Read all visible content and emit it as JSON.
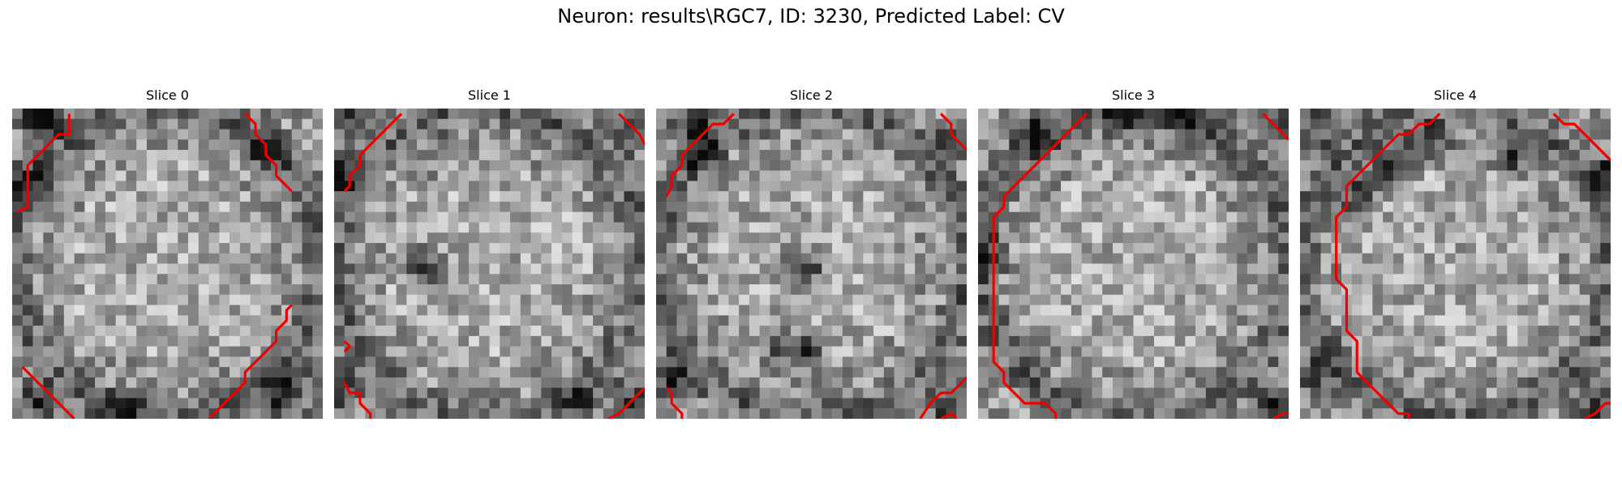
{
  "figure": {
    "title": "Neuron: results\\RGC7, ID: 3230, Predicted Label: CV",
    "panels": [
      {
        "title": "Slice 0",
        "contour": [
          [
            [
              5,
              0
            ],
            [
              5,
              2
            ],
            [
              4,
              2
            ],
            [
              3,
              3
            ],
            [
              2,
              4
            ],
            [
              1,
              5
            ],
            [
              1,
              6
            ],
            [
              1,
              7
            ],
            [
              1,
              8
            ],
            [
              1,
              9
            ],
            [
              0,
              9.5
            ]
          ],
          [
            [
              22,
              0
            ],
            [
              23,
              1
            ],
            [
              23,
              2
            ],
            [
              24,
              3
            ],
            [
              24,
              4
            ],
            [
              25,
              5
            ],
            [
              25,
              6
            ],
            [
              26,
              7
            ],
            [
              26.5,
              7.5
            ]
          ],
          [
            [
              0.5,
              24.5
            ],
            [
              1,
              25
            ],
            [
              2,
              26
            ],
            [
              3,
              27
            ],
            [
              4,
              28
            ],
            [
              5,
              29
            ],
            [
              5.5,
              29.5
            ]
          ],
          [
            [
              26.5,
              18.5
            ],
            [
              26,
              19
            ],
            [
              26,
              20
            ],
            [
              25,
              21
            ],
            [
              25,
              22
            ],
            [
              24,
              23
            ],
            [
              23,
              24
            ],
            [
              22,
              25
            ],
            [
              22,
              26
            ],
            [
              21,
              27
            ],
            [
              20,
              28
            ],
            [
              19,
              29
            ],
            [
              18.5,
              29.5
            ]
          ]
        ],
        "dark": [
          [
            2,
            1,
            1.5
          ],
          [
            1,
            7,
            2
          ],
          [
            3,
            0,
            2
          ],
          [
            24,
            4,
            1.5
          ],
          [
            2,
            28,
            2
          ],
          [
            26,
            27,
            2.5
          ],
          [
            10,
            29,
            2
          ]
        ]
      },
      {
        "title": "Slice 1",
        "contour": [
          [
            [
              6,
              0
            ],
            [
              5,
              1
            ],
            [
              4,
              2
            ],
            [
              3,
              3
            ],
            [
              2,
              4
            ],
            [
              2,
              5
            ],
            [
              1,
              6
            ],
            [
              1,
              7
            ],
            [
              0.5,
              7.5
            ]
          ],
          [
            [
              27,
              0
            ],
            [
              28,
              1
            ],
            [
              29,
              2
            ],
            [
              29.5,
              3
            ]
          ],
          [
            [
              0.5,
              22
            ],
            [
              1,
              22.5
            ],
            [
              0.5,
              23
            ]
          ],
          [
            [
              0.5,
              26
            ],
            [
              1,
              27
            ],
            [
              2,
              27
            ],
            [
              2,
              28
            ],
            [
              3,
              29
            ],
            [
              3,
              29.5
            ]
          ],
          [
            [
              26,
              29.5
            ],
            [
              27,
              29
            ],
            [
              28,
              28
            ],
            [
              29,
              27
            ],
            [
              29.5,
              26.5
            ]
          ]
        ],
        "dark": [
          [
            1,
            0,
            1.5
          ],
          [
            0,
            6,
            1.5
          ],
          [
            28,
            2,
            1.5
          ],
          [
            0,
            27,
            2
          ],
          [
            28,
            28,
            2
          ],
          [
            23,
            28,
            1.5
          ],
          [
            8,
            15,
            2
          ]
        ]
      },
      {
        "title": "Slice 2",
        "contour": [
          [
            [
              7,
              0
            ],
            [
              6,
              1
            ],
            [
              5,
              1
            ],
            [
              4,
              2
            ],
            [
              3,
              3
            ],
            [
              2,
              4
            ],
            [
              2,
              5
            ],
            [
              1,
              6
            ],
            [
              1,
              7
            ],
            [
              0.5,
              8
            ]
          ],
          [
            [
              27,
              0
            ],
            [
              28,
              1
            ],
            [
              28,
              2
            ],
            [
              29,
              3
            ],
            [
              29.5,
              3.5
            ]
          ],
          [
            [
              0.5,
              26.5
            ],
            [
              1,
              27
            ],
            [
              1,
              28
            ],
            [
              2,
              29
            ],
            [
              2,
              29.5
            ]
          ],
          [
            [
              25,
              29.5
            ],
            [
              26,
              28
            ],
            [
              27,
              27
            ],
            [
              28,
              27
            ],
            [
              29,
              26
            ],
            [
              29.5,
              25.5
            ]
          ],
          [
            [
              27,
              29.5
            ],
            [
              28,
              29
            ],
            [
              28.5,
              29.5
            ]
          ]
        ],
        "dark": [
          [
            3,
            1,
            2
          ],
          [
            4,
            4,
            1.5
          ],
          [
            28,
            3,
            1.5
          ],
          [
            1,
            26,
            2.5
          ],
          [
            28,
            28,
            2.5
          ],
          [
            14,
            15,
            2
          ],
          [
            11,
            22,
            1.5
          ],
          [
            14,
            23,
            1.5
          ]
        ]
      },
      {
        "title": "Slice 3",
        "contour": [
          [
            [
              10,
              0
            ],
            [
              9,
              1
            ],
            [
              8,
              2
            ],
            [
              7,
              3
            ],
            [
              6,
              4
            ],
            [
              5,
              5
            ],
            [
              4,
              6
            ],
            [
              3,
              7
            ],
            [
              2,
              8
            ],
            [
              2,
              9
            ],
            [
              1,
              10
            ],
            [
              1,
              11
            ],
            [
              1,
              12
            ],
            [
              1,
              13
            ],
            [
              1,
              14
            ],
            [
              1,
              15
            ],
            [
              1,
              16
            ],
            [
              1,
              17
            ],
            [
              1,
              18
            ],
            [
              1,
              19
            ],
            [
              1,
              20
            ],
            [
              1,
              21
            ],
            [
              1,
              22
            ],
            [
              1,
              23
            ],
            [
              1,
              24
            ],
            [
              2,
              25
            ],
            [
              2,
              26
            ],
            [
              3,
              27
            ],
            [
              4,
              28
            ],
            [
              5,
              28
            ],
            [
              6,
              28
            ],
            [
              7,
              29
            ],
            [
              7,
              29.5
            ]
          ],
          [
            [
              27,
              0
            ],
            [
              28,
              1
            ],
            [
              29,
              2
            ],
            [
              29.5,
              2.5
            ]
          ],
          [
            [
              28,
              29.5
            ],
            [
              29,
              29
            ],
            [
              29.5,
              29
            ]
          ]
        ],
        "dark": [
          [
            14,
            0,
            3
          ],
          [
            5,
            2,
            2
          ],
          [
            28,
            1,
            1.5
          ],
          [
            0,
            14,
            2
          ],
          [
            28,
            28,
            2
          ],
          [
            20,
            0,
            2.5
          ]
        ]
      },
      {
        "title": "Slice 4",
        "contour": [
          [
            [
              13,
              0
            ],
            [
              12,
              1
            ],
            [
              11,
              1
            ],
            [
              10,
              2
            ],
            [
              9,
              2
            ],
            [
              8,
              3
            ],
            [
              7,
              4
            ],
            [
              6,
              5
            ],
            [
              5,
              6
            ],
            [
              4,
              7
            ],
            [
              4,
              8
            ],
            [
              4,
              9
            ],
            [
              3,
              10
            ],
            [
              3,
              11
            ],
            [
              3,
              12
            ],
            [
              3,
              13
            ],
            [
              3,
              14
            ],
            [
              3,
              15
            ],
            [
              3,
              16
            ],
            [
              4,
              17
            ],
            [
              4,
              18
            ],
            [
              4,
              19
            ],
            [
              4,
              20
            ],
            [
              4,
              21
            ],
            [
              5,
              22
            ],
            [
              5,
              23
            ],
            [
              5,
              24
            ],
            [
              5,
              25
            ],
            [
              6,
              26
            ],
            [
              7,
              27
            ],
            [
              8,
              28
            ],
            [
              9,
              29
            ],
            [
              10,
              29
            ],
            [
              10,
              29.5
            ]
          ],
          [
            [
              24,
              0
            ],
            [
              25,
              1
            ],
            [
              26,
              1
            ],
            [
              27,
              2
            ],
            [
              28,
              3
            ],
            [
              29,
              4
            ],
            [
              29.5,
              4.5
            ]
          ],
          [
            [
              27,
              29.5
            ],
            [
              28,
              29
            ],
            [
              29,
              28
            ],
            [
              29.5,
              28
            ]
          ]
        ],
        "dark": [
          [
            1,
            1,
            2
          ],
          [
            8,
            5,
            2.5
          ],
          [
            5,
            8,
            1.5
          ],
          [
            12,
            3,
            2
          ],
          [
            20,
            4,
            1.5
          ],
          [
            29,
            6,
            2
          ],
          [
            28,
            28,
            2
          ],
          [
            1,
            25,
            1.5
          ]
        ]
      }
    ]
  }
}
